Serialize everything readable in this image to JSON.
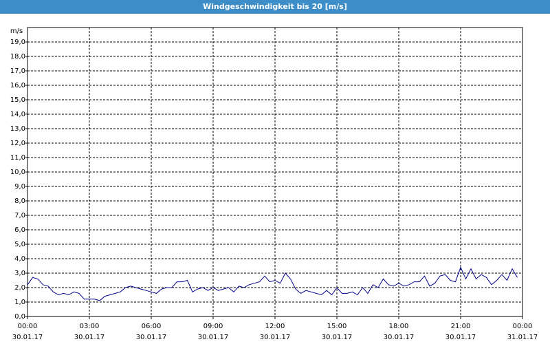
{
  "chart_data": {
    "type": "line",
    "title": "Windgeschwindigkeit bis 20 [m/s]",
    "y_unit": "m/s",
    "x": [
      0,
      0.25,
      0.5,
      0.75,
      1,
      1.25,
      1.5,
      1.75,
      2,
      2.25,
      2.5,
      2.75,
      3,
      3.25,
      3.5,
      3.75,
      4,
      4.25,
      4.5,
      4.75,
      5,
      5.25,
      5.5,
      5.75,
      6,
      6.25,
      6.5,
      6.75,
      7,
      7.25,
      7.5,
      7.75,
      8,
      8.25,
      8.5,
      8.75,
      9,
      9.25,
      9.5,
      9.75,
      10,
      10.25,
      10.5,
      10.75,
      11,
      11.25,
      11.5,
      11.75,
      12,
      12.25,
      12.5,
      12.75,
      13,
      13.25,
      13.5,
      13.75,
      14,
      14.25,
      14.5,
      14.75,
      15,
      15.25,
      15.5,
      15.75,
      16,
      16.25,
      16.5,
      16.75,
      17,
      17.25,
      17.5,
      17.75,
      18,
      18.25,
      18.5,
      18.75,
      19,
      19.25,
      19.5,
      19.75,
      20,
      20.25,
      20.5,
      20.75,
      21,
      21.25,
      21.5,
      21.75,
      22,
      22.25,
      22.5,
      22.75,
      23,
      23.25,
      23.5,
      23.75
    ],
    "series": [
      {
        "color": "#00008b",
        "values": [
          2.2,
          2.7,
          2.6,
          2.2,
          2.1,
          1.7,
          1.5,
          1.6,
          1.5,
          1.7,
          1.6,
          1.2,
          1.2,
          1.2,
          1.1,
          1.4,
          1.5,
          1.6,
          1.7,
          2.0,
          2.1,
          2.0,
          1.9,
          1.8,
          1.7,
          1.6,
          1.9,
          2.0,
          2.0,
          2.4,
          2.4,
          2.5,
          1.7,
          1.9,
          2.0,
          1.8,
          2.0,
          1.8,
          1.9,
          2.0,
          1.7,
          2.1,
          2.0,
          2.2,
          2.3,
          2.4,
          2.8,
          2.4,
          2.5,
          2.3,
          3.0,
          2.6,
          1.9,
          1.6,
          1.8,
          1.7,
          1.6,
          1.5,
          1.8,
          1.5,
          2.0,
          1.6,
          1.6,
          1.7,
          1.5,
          2.0,
          1.6,
          2.2,
          2.0,
          2.6,
          2.2,
          2.1,
          2.3,
          2.1,
          2.2,
          2.4,
          2.4,
          2.8,
          2.1,
          2.3,
          2.8,
          2.9,
          2.5,
          2.4,
          3.4,
          2.6,
          3.3,
          2.6,
          2.9,
          2.7,
          2.2,
          2.5,
          2.9,
          2.5,
          3.3,
          2.7
        ]
      }
    ],
    "xlim": [
      0,
      24
    ],
    "xticks": [
      {
        "value": 0,
        "label": "00:00",
        "date": "30.01.17"
      },
      {
        "value": 3,
        "label": "03:00",
        "date": "30.01.17"
      },
      {
        "value": 6,
        "label": "06:00",
        "date": "30.01.17"
      },
      {
        "value": 9,
        "label": "09:00",
        "date": "30.01.17"
      },
      {
        "value": 12,
        "label": "12:00",
        "date": "30.01.17"
      },
      {
        "value": 15,
        "label": "15:00",
        "date": "30.01.17"
      },
      {
        "value": 18,
        "label": "18:00",
        "date": "30.01.17"
      },
      {
        "value": 21,
        "label": "21:00",
        "date": "30.01.17"
      },
      {
        "value": 24,
        "label": "00:00",
        "date": "31.01.17"
      }
    ],
    "ylim": [
      0,
      20
    ],
    "yticks": [
      {
        "value": 0,
        "label": "0,0"
      },
      {
        "value": 1,
        "label": "1,0"
      },
      {
        "value": 2,
        "label": "2,0"
      },
      {
        "value": 3,
        "label": "3,0"
      },
      {
        "value": 4,
        "label": "4,0"
      },
      {
        "value": 5,
        "label": "5,0"
      },
      {
        "value": 6,
        "label": "6,0"
      },
      {
        "value": 7,
        "label": "7,0"
      },
      {
        "value": 8,
        "label": "8,0"
      },
      {
        "value": 9,
        "label": "9,0"
      },
      {
        "value": 10,
        "label": "10,0"
      },
      {
        "value": 11,
        "label": "11,0"
      },
      {
        "value": 12,
        "label": "12,0"
      },
      {
        "value": 13,
        "label": "13,0"
      },
      {
        "value": 14,
        "label": "14,0"
      },
      {
        "value": 15,
        "label": "15,0"
      },
      {
        "value": 16,
        "label": "16,0"
      },
      {
        "value": 17,
        "label": "17,0"
      },
      {
        "value": 18,
        "label": "18,0"
      },
      {
        "value": 19,
        "label": "19,0"
      }
    ],
    "grid": true
  }
}
